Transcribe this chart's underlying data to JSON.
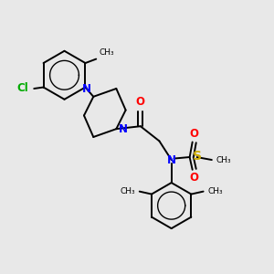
{
  "bg_color": "#e8e8e8",
  "bond_color": "#000000",
  "N_color": "#0000ff",
  "O_color": "#ff0000",
  "S_color": "#ccaa00",
  "Cl_color": "#00aa00",
  "line_width": 1.4,
  "font_size": 8.5,
  "fig_w": 3.0,
  "fig_h": 3.0,
  "dpi": 100,
  "xlim": [
    0,
    10
  ],
  "ylim": [
    0,
    10
  ]
}
